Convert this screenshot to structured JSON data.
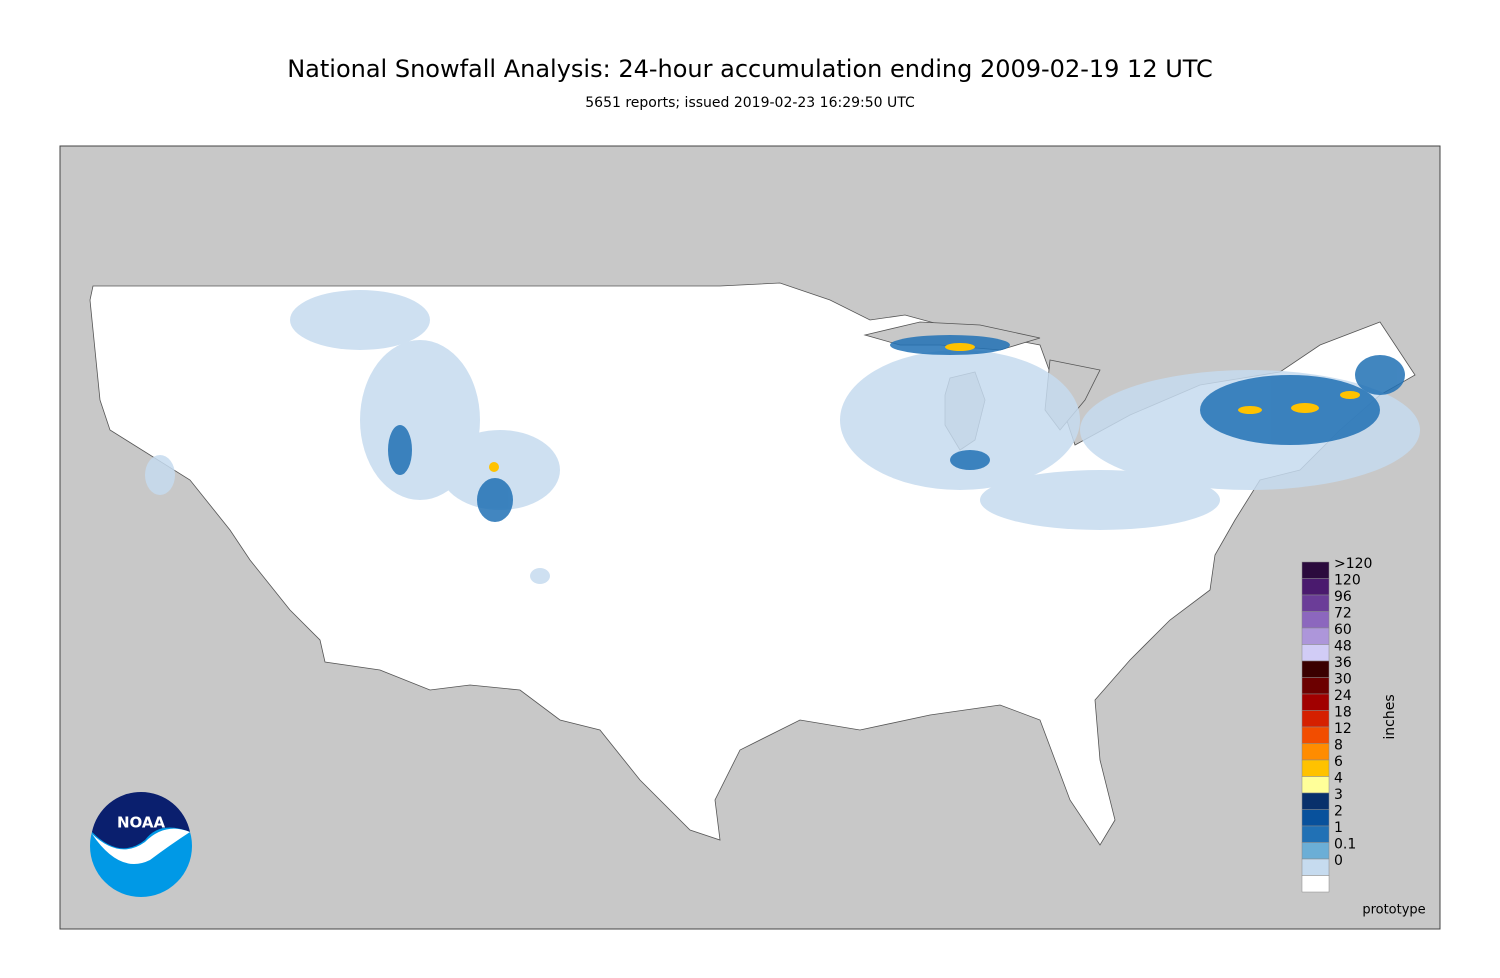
{
  "title": "National Snowfall Analysis: 24-hour accumulation ending 2009-02-19 12 UTC",
  "subtitle": "5651 reports; issued 2019-02-23 16:29:50 UTC",
  "logo": "NOAA",
  "note": "prototype",
  "legend": {
    "title": "inches",
    "items": [
      {
        "label": ">120",
        "color": "#2b0a3d"
      },
      {
        "label": "120",
        "color": "#4a1a6e"
      },
      {
        "label": "96",
        "color": "#6b3d98"
      },
      {
        "label": "72",
        "color": "#8c67be"
      },
      {
        "label": "60",
        "color": "#ad96da"
      },
      {
        "label": "48",
        "color": "#d1ccf6"
      },
      {
        "label": "36",
        "color": "#3a0000"
      },
      {
        "label": "30",
        "color": "#6c0000"
      },
      {
        "label": "24",
        "color": "#a10000"
      },
      {
        "label": "18",
        "color": "#d52000"
      },
      {
        "label": "12",
        "color": "#f24d00"
      },
      {
        "label": "8",
        "color": "#ff8c00"
      },
      {
        "label": "6",
        "color": "#ffc200"
      },
      {
        "label": "4",
        "color": "#ffff99"
      },
      {
        "label": "3",
        "color": "#08306b"
      },
      {
        "label": "2",
        "color": "#08519c"
      },
      {
        "label": "1",
        "color": "#2171b5"
      },
      {
        "label": "0.1",
        "color": "#6baed6"
      },
      {
        "label": "0",
        "color": "#c6dbef"
      }
    ]
  }
}
